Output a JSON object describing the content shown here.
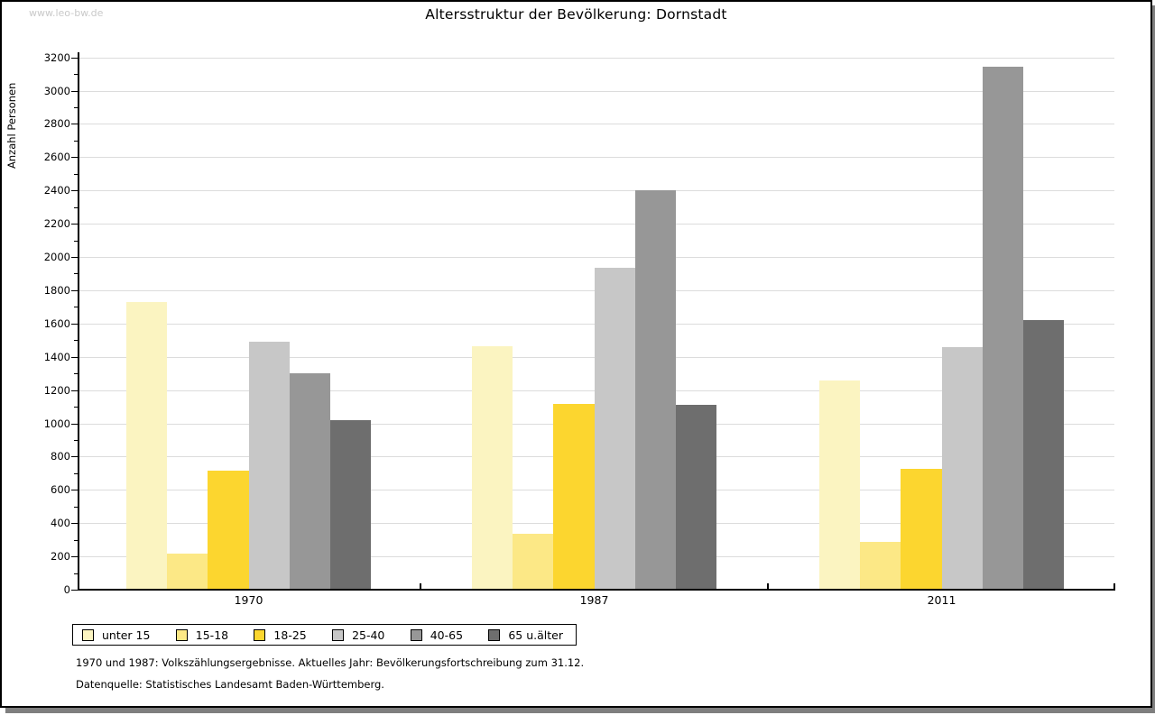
{
  "watermark": "www.leo-bw.de",
  "title": "Altersstruktur der Bevölkerung: Dornstadt",
  "footnotes": {
    "line1": "1970 und 1987: Volkszählungsergebnisse. Aktuelles Jahr: Bevölkerungsfortschreibung zum 31.12.",
    "line2": "Datenquelle: Statistisches Landesamt Baden-Württemberg."
  },
  "colors": {
    "grid": "#dcdcdc",
    "axis": "#000000",
    "shadow": "#7f7f7f",
    "watermark": "#c9c9c9"
  },
  "chart_data": {
    "type": "bar",
    "title": "Altersstruktur der Bevölkerung: Dornstadt",
    "xlabel": "",
    "ylabel": "Anzahl Personen",
    "ylim": [
      0,
      3200
    ],
    "ytick_step": 200,
    "yminor_step": 100,
    "grid": "horizontal",
    "legend_position": "bottom-left",
    "categories": [
      "1970",
      "1987",
      "2011"
    ],
    "series": [
      {
        "name": "unter 15",
        "color": "#FBF4C1",
        "values": [
          1730,
          1465,
          1255
        ]
      },
      {
        "name": "15-18",
        "color": "#FCE886",
        "values": [
          215,
          335,
          285
        ]
      },
      {
        "name": "18-25",
        "color": "#FCD62F",
        "values": [
          715,
          1115,
          725
        ]
      },
      {
        "name": "25-40",
        "color": "#C7C7C7",
        "values": [
          1490,
          1935,
          1460
        ]
      },
      {
        "name": "40-65",
        "color": "#979797",
        "values": [
          1300,
          2400,
          3145
        ]
      },
      {
        "name": "65 u.älter",
        "color": "#6E6E6E",
        "values": [
          1020,
          1110,
          1620
        ]
      }
    ]
  }
}
